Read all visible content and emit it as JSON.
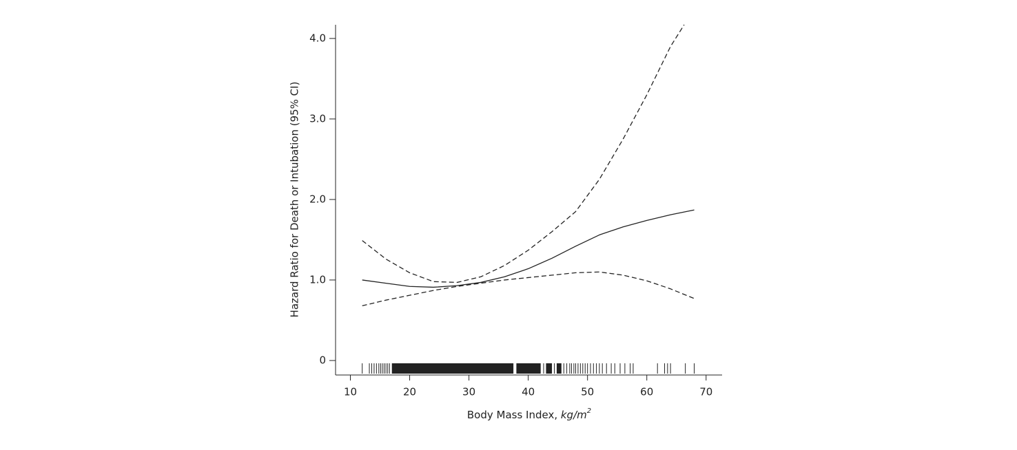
{
  "chart_data": {
    "type": "line",
    "xlabel_parts": [
      "Body Mass Index, ",
      "kg/m",
      "2"
    ],
    "ylabel": "Hazard Ratio for Death or Intubation (95% CI)",
    "xlim": [
      7.5,
      72.7
    ],
    "ylim": [
      -0.18,
      4.17
    ],
    "xticks": [
      10,
      20,
      30,
      40,
      50,
      60,
      70
    ],
    "yticks": [
      {
        "value": 0,
        "label": "0"
      },
      {
        "value": 1,
        "label": "1.0"
      },
      {
        "value": 2,
        "label": "2.0"
      },
      {
        "value": 3,
        "label": "3.0"
      },
      {
        "value": 4,
        "label": "4.0"
      }
    ],
    "color": "#222222",
    "series": [
      {
        "x": [
          12,
          16,
          20,
          24,
          28,
          32,
          36,
          40,
          44,
          48,
          52,
          56,
          60,
          64,
          68
        ],
        "values": [
          1.0,
          0.96,
          0.92,
          0.91,
          0.93,
          0.97,
          1.04,
          1.14,
          1.27,
          1.42,
          1.56,
          1.66,
          1.74,
          1.81,
          1.87
        ],
        "dash": false
      },
      {
        "x": [
          12,
          16,
          20,
          24,
          28,
          32,
          36,
          40,
          44,
          48,
          50,
          52,
          56,
          60,
          64,
          66.3
        ],
        "values": [
          1.49,
          1.26,
          1.09,
          0.98,
          0.97,
          1.04,
          1.18,
          1.37,
          1.6,
          1.85,
          2.05,
          2.25,
          2.75,
          3.3,
          3.9,
          4.17
        ],
        "dash": true
      },
      {
        "x": [
          12,
          16,
          20,
          24,
          28,
          32,
          36,
          40,
          44,
          48,
          52,
          56,
          60,
          64,
          68
        ],
        "values": [
          0.68,
          0.75,
          0.81,
          0.87,
          0.92,
          0.96,
          1.0,
          1.03,
          1.06,
          1.09,
          1.1,
          1.06,
          0.99,
          0.89,
          0.77
        ],
        "dash": true
      }
    ],
    "rug": [
      12,
      13.2,
      13.6,
      14,
      14.4,
      14.8,
      15.1,
      15.4,
      15.7,
      16,
      16.3,
      16.6,
      42.6,
      44.4,
      46,
      46.5,
      47,
      47.3,
      47.7,
      48,
      48.4,
      48.8,
      49.2,
      49.6,
      50,
      50.5,
      51,
      51.5,
      52,
      52.5,
      53.2,
      54,
      54.6,
      55.5,
      56.3,
      57.2,
      57.7,
      61.8,
      63,
      63.5,
      64,
      66.5,
      68
    ],
    "rug_bands": [
      [
        17,
        37.5
      ],
      [
        38,
        42.1
      ],
      [
        43,
        44
      ],
      [
        44.8,
        45.6
      ]
    ]
  }
}
